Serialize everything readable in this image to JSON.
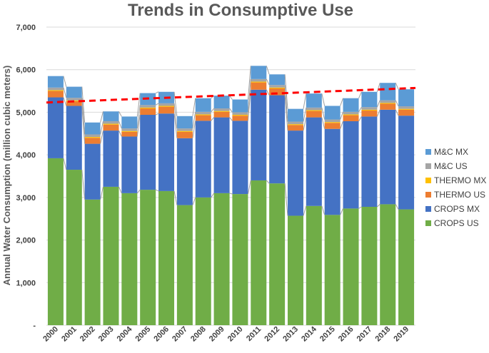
{
  "chart_data": {
    "type": "bar",
    "stacked": true,
    "title": "Trends in Consumptive Use",
    "xlabel": "",
    "ylabel": "Annual Water Consumption (million cubic meters)",
    "ylim": [
      0,
      7000
    ],
    "y_ticks": [
      0,
      1000,
      2000,
      3000,
      4000,
      5000,
      6000,
      7000
    ],
    "y_tick_labels": [
      "-",
      "1,000",
      "2,000",
      "3,000",
      "4,000",
      "5,000",
      "6,000",
      "7,000"
    ],
    "categories": [
      "2000",
      "2001",
      "2002",
      "2003",
      "2004",
      "2005",
      "2006",
      "2007",
      "2008",
      "2009",
      "2010",
      "2011",
      "2012",
      "2013",
      "2014",
      "2015",
      "2016",
      "2017",
      "2018",
      "2019"
    ],
    "series": [
      {
        "name": "CROPS US",
        "color": "#70ad47",
        "values": [
          3920,
          3650,
          2950,
          3250,
          3100,
          3180,
          3150,
          2820,
          3000,
          3100,
          3080,
          3400,
          3330,
          2570,
          2800,
          2590,
          2740,
          2780,
          2840,
          2720
        ]
      },
      {
        "name": "CROPS MX",
        "color": "#4472c4",
        "values": [
          1430,
          1500,
          1310,
          1320,
          1330,
          1760,
          1820,
          1570,
          1800,
          1780,
          1720,
          2130,
          2070,
          2000,
          2080,
          2020,
          2050,
          2120,
          2220,
          2200
        ]
      },
      {
        "name": "THERMO US",
        "color": "#ed7d31",
        "values": [
          150,
          110,
          140,
          140,
          110,
          150,
          160,
          150,
          130,
          130,
          120,
          170,
          160,
          130,
          150,
          140,
          140,
          140,
          140,
          140
        ]
      },
      {
        "name": "THERMO MX",
        "color": "#ffc000",
        "values": [
          20,
          20,
          20,
          20,
          20,
          20,
          20,
          20,
          20,
          20,
          20,
          20,
          20,
          20,
          20,
          20,
          20,
          20,
          20,
          20
        ]
      },
      {
        "name": "M&C US",
        "color": "#a5a5a5",
        "values": [
          60,
          60,
          60,
          60,
          60,
          60,
          60,
          60,
          60,
          60,
          60,
          60,
          60,
          60,
          60,
          60,
          60,
          60,
          60,
          60
        ]
      },
      {
        "name": "M&C MX",
        "color": "#5b9bd5",
        "values": [
          270,
          260,
          280,
          230,
          280,
          280,
          270,
          290,
          320,
          300,
          300,
          310,
          250,
          300,
          330,
          320,
          320,
          360,
          410,
          400
        ]
      }
    ],
    "trendline": {
      "style": "dashed",
      "color": "#ff0000",
      "start": 5230,
      "end": 5570
    },
    "legend_position": "right",
    "grid": true
  }
}
